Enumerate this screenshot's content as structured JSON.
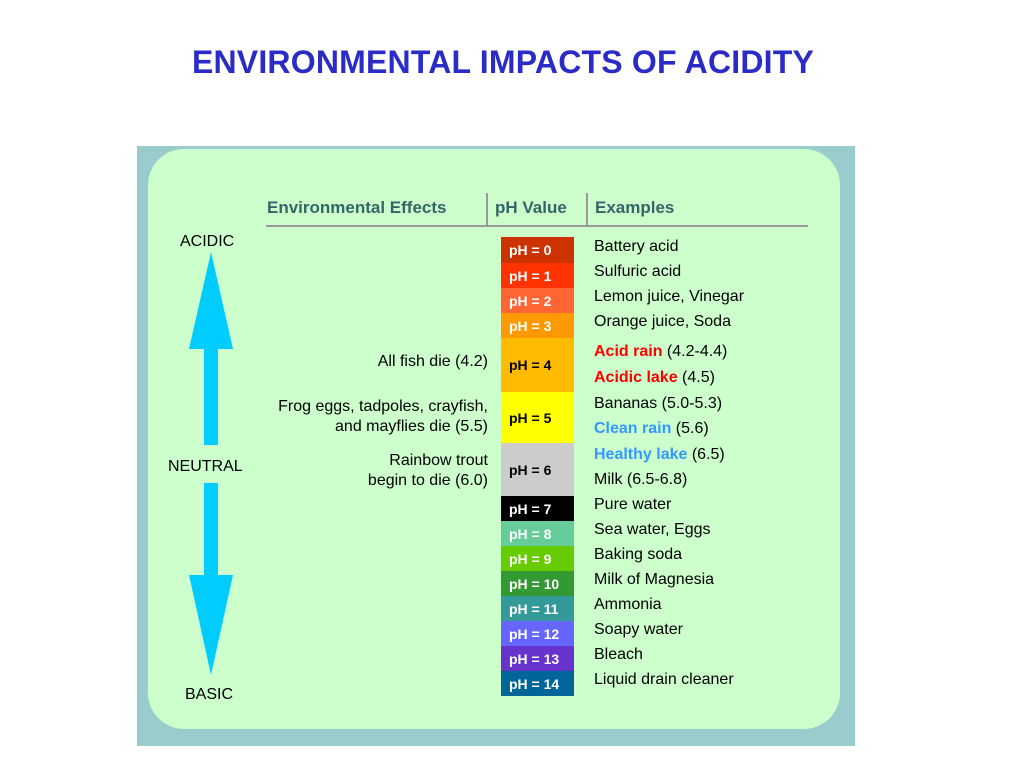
{
  "title": "ENVIRONMENTAL IMPACTS OF ACIDITY",
  "headers": {
    "effects": "Environmental Effects",
    "ph": "pH Value",
    "examples": "Examples"
  },
  "scale_labels": {
    "acidic": "ACIDIC",
    "neutral": "NEUTRAL",
    "basic": "BASIC"
  },
  "arrow_color": "#00ccff",
  "effects": {
    "fish": "All fish die (4.2)",
    "frog_line1": "Frog eggs, tadpoles, crayfish,",
    "frog_line2": "and mayflies die (5.5)",
    "trout_line1": "Rainbow trout",
    "trout_line2": "begin to die (6.0)"
  },
  "ph_scale": [
    {
      "label": "pH = 0",
      "bg": "#cc3300",
      "fg": "#ffffff"
    },
    {
      "label": "pH = 1",
      "bg": "#ff3300",
      "fg": "#ffffff"
    },
    {
      "label": "pH = 2",
      "bg": "#ff6633",
      "fg": "#ffffff"
    },
    {
      "label": "pH = 3",
      "bg": "#ff9900",
      "fg": "#ffffff"
    },
    {
      "label": "pH = 4",
      "bg": "#ffbb00",
      "fg": "#000000"
    },
    {
      "label": "pH = 5",
      "bg": "#ffff00",
      "fg": "#000000"
    },
    {
      "label": "pH = 6",
      "bg": "#cccccc",
      "fg": "#000000"
    },
    {
      "label": "pH = 7",
      "bg": "#000000",
      "fg": "#ffffff"
    },
    {
      "label": "pH = 8",
      "bg": "#66cc99",
      "fg": "#ffffff"
    },
    {
      "label": "pH = 9",
      "bg": "#66cc00",
      "fg": "#ffffff"
    },
    {
      "label": "pH = 10",
      "bg": "#339933",
      "fg": "#ffffff"
    },
    {
      "label": "pH = 11",
      "bg": "#339999",
      "fg": "#ffffff"
    },
    {
      "label": "pH = 12",
      "bg": "#6666ff",
      "fg": "#ffffff"
    },
    {
      "label": "pH = 13",
      "bg": "#6633cc",
      "fg": "#ffffff"
    },
    {
      "label": "pH = 14",
      "bg": "#006699",
      "fg": "#ffffff"
    }
  ],
  "examples": [
    {
      "text": "Battery acid"
    },
    {
      "text": "Sulfuric acid"
    },
    {
      "text": "Lemon juice, Vinegar"
    },
    {
      "text": "Orange juice, Soda"
    },
    {
      "highlight": "Acid rain",
      "rest": " (4.2-4.4)",
      "color": "#ff0000"
    },
    {
      "highlight": "Acidic lake",
      "rest": " (4.5)",
      "color": "#ff0000"
    },
    {
      "text": "Bananas (5.0-5.3)"
    },
    {
      "highlight": "Clean rain",
      "rest": " (5.6)",
      "color": "#3399ff"
    },
    {
      "highlight": "Healthy lake",
      "rest": " (6.5)",
      "color": "#3399ff"
    },
    {
      "text": "Milk (6.5-6.8)"
    },
    {
      "text": "Pure water"
    },
    {
      "text": "Sea water, Eggs"
    },
    {
      "text": "Baking soda"
    },
    {
      "text": "Milk of Magnesia"
    },
    {
      "text": "Ammonia"
    },
    {
      "text": "Soapy water"
    },
    {
      "text": "Bleach"
    },
    {
      "text": "Liquid drain cleaner"
    }
  ]
}
